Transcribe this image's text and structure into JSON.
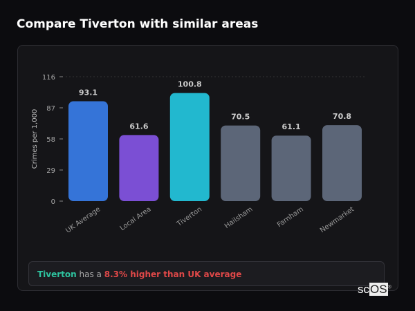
{
  "title": "Compare Tiverton with similar areas",
  "chart_data": {
    "type": "bar",
    "ylabel": "Crimes per 1,000",
    "xlabel": "",
    "ylim": [
      0,
      116
    ],
    "yticks": [
      0,
      29,
      58,
      87,
      116
    ],
    "grid": false,
    "categories": [
      "UK Average",
      "Local Area",
      "Tiverton",
      "Hailsham",
      "Farnham",
      "Newmarket"
    ],
    "values": [
      93.1,
      61.6,
      100.8,
      70.5,
      61.1,
      70.8
    ],
    "data_labels": [
      "93.1",
      "61.6",
      "100.8",
      "70.5",
      "61.1",
      "70.8"
    ],
    "colors": [
      "#3574d8",
      "#7b4fd4",
      "#22b8cf",
      "#5c6678",
      "#5c6678",
      "#5c6678"
    ]
  },
  "callout": {
    "area": "Tiverton",
    "middle": "has a",
    "comparison": "8.3% higher than UK average"
  },
  "logo": {
    "text": "scOS"
  }
}
